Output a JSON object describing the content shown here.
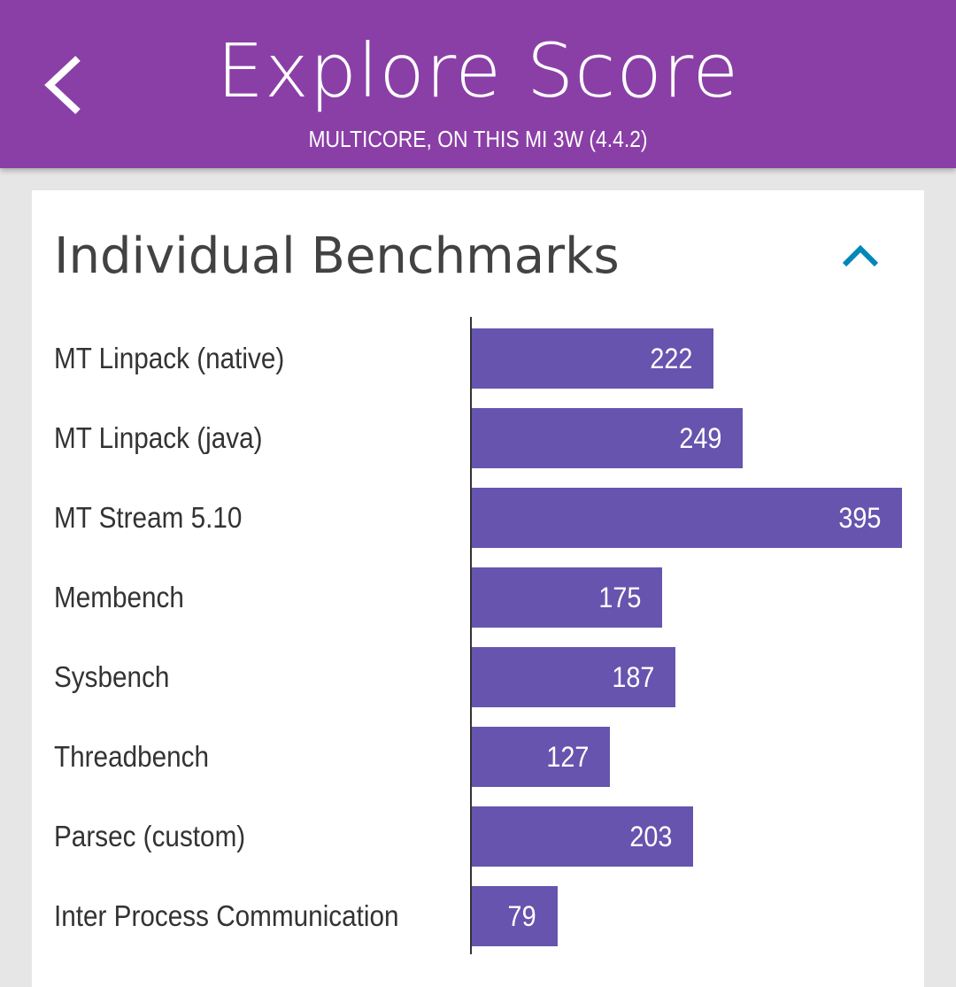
{
  "header": {
    "title": "Explore Score",
    "subtitle": "MULTICORE, ON THIS MI 3W (4.4.2)",
    "back_icon": "chevron-left-icon"
  },
  "card": {
    "title": "Individual Benchmarks",
    "collapse_icon": "chevron-up-icon",
    "accent_color": "#0288b8"
  },
  "colors": {
    "header_bg": "#8a3fa6",
    "bar": "#6654ae",
    "page_bg": "#e6e6e6"
  },
  "chart_data": {
    "type": "bar",
    "orientation": "horizontal",
    "categories": [
      "MT Linpack (native)",
      "MT Linpack (java)",
      "MT Stream 5.10",
      "Membench",
      "Sysbench",
      "Threadbench",
      "Parsec (custom)",
      "Inter Process Communication"
    ],
    "values": [
      222,
      249,
      395,
      175,
      187,
      127,
      203,
      79
    ],
    "xlim": [
      0,
      395
    ],
    "grid": false,
    "legend": "none"
  }
}
